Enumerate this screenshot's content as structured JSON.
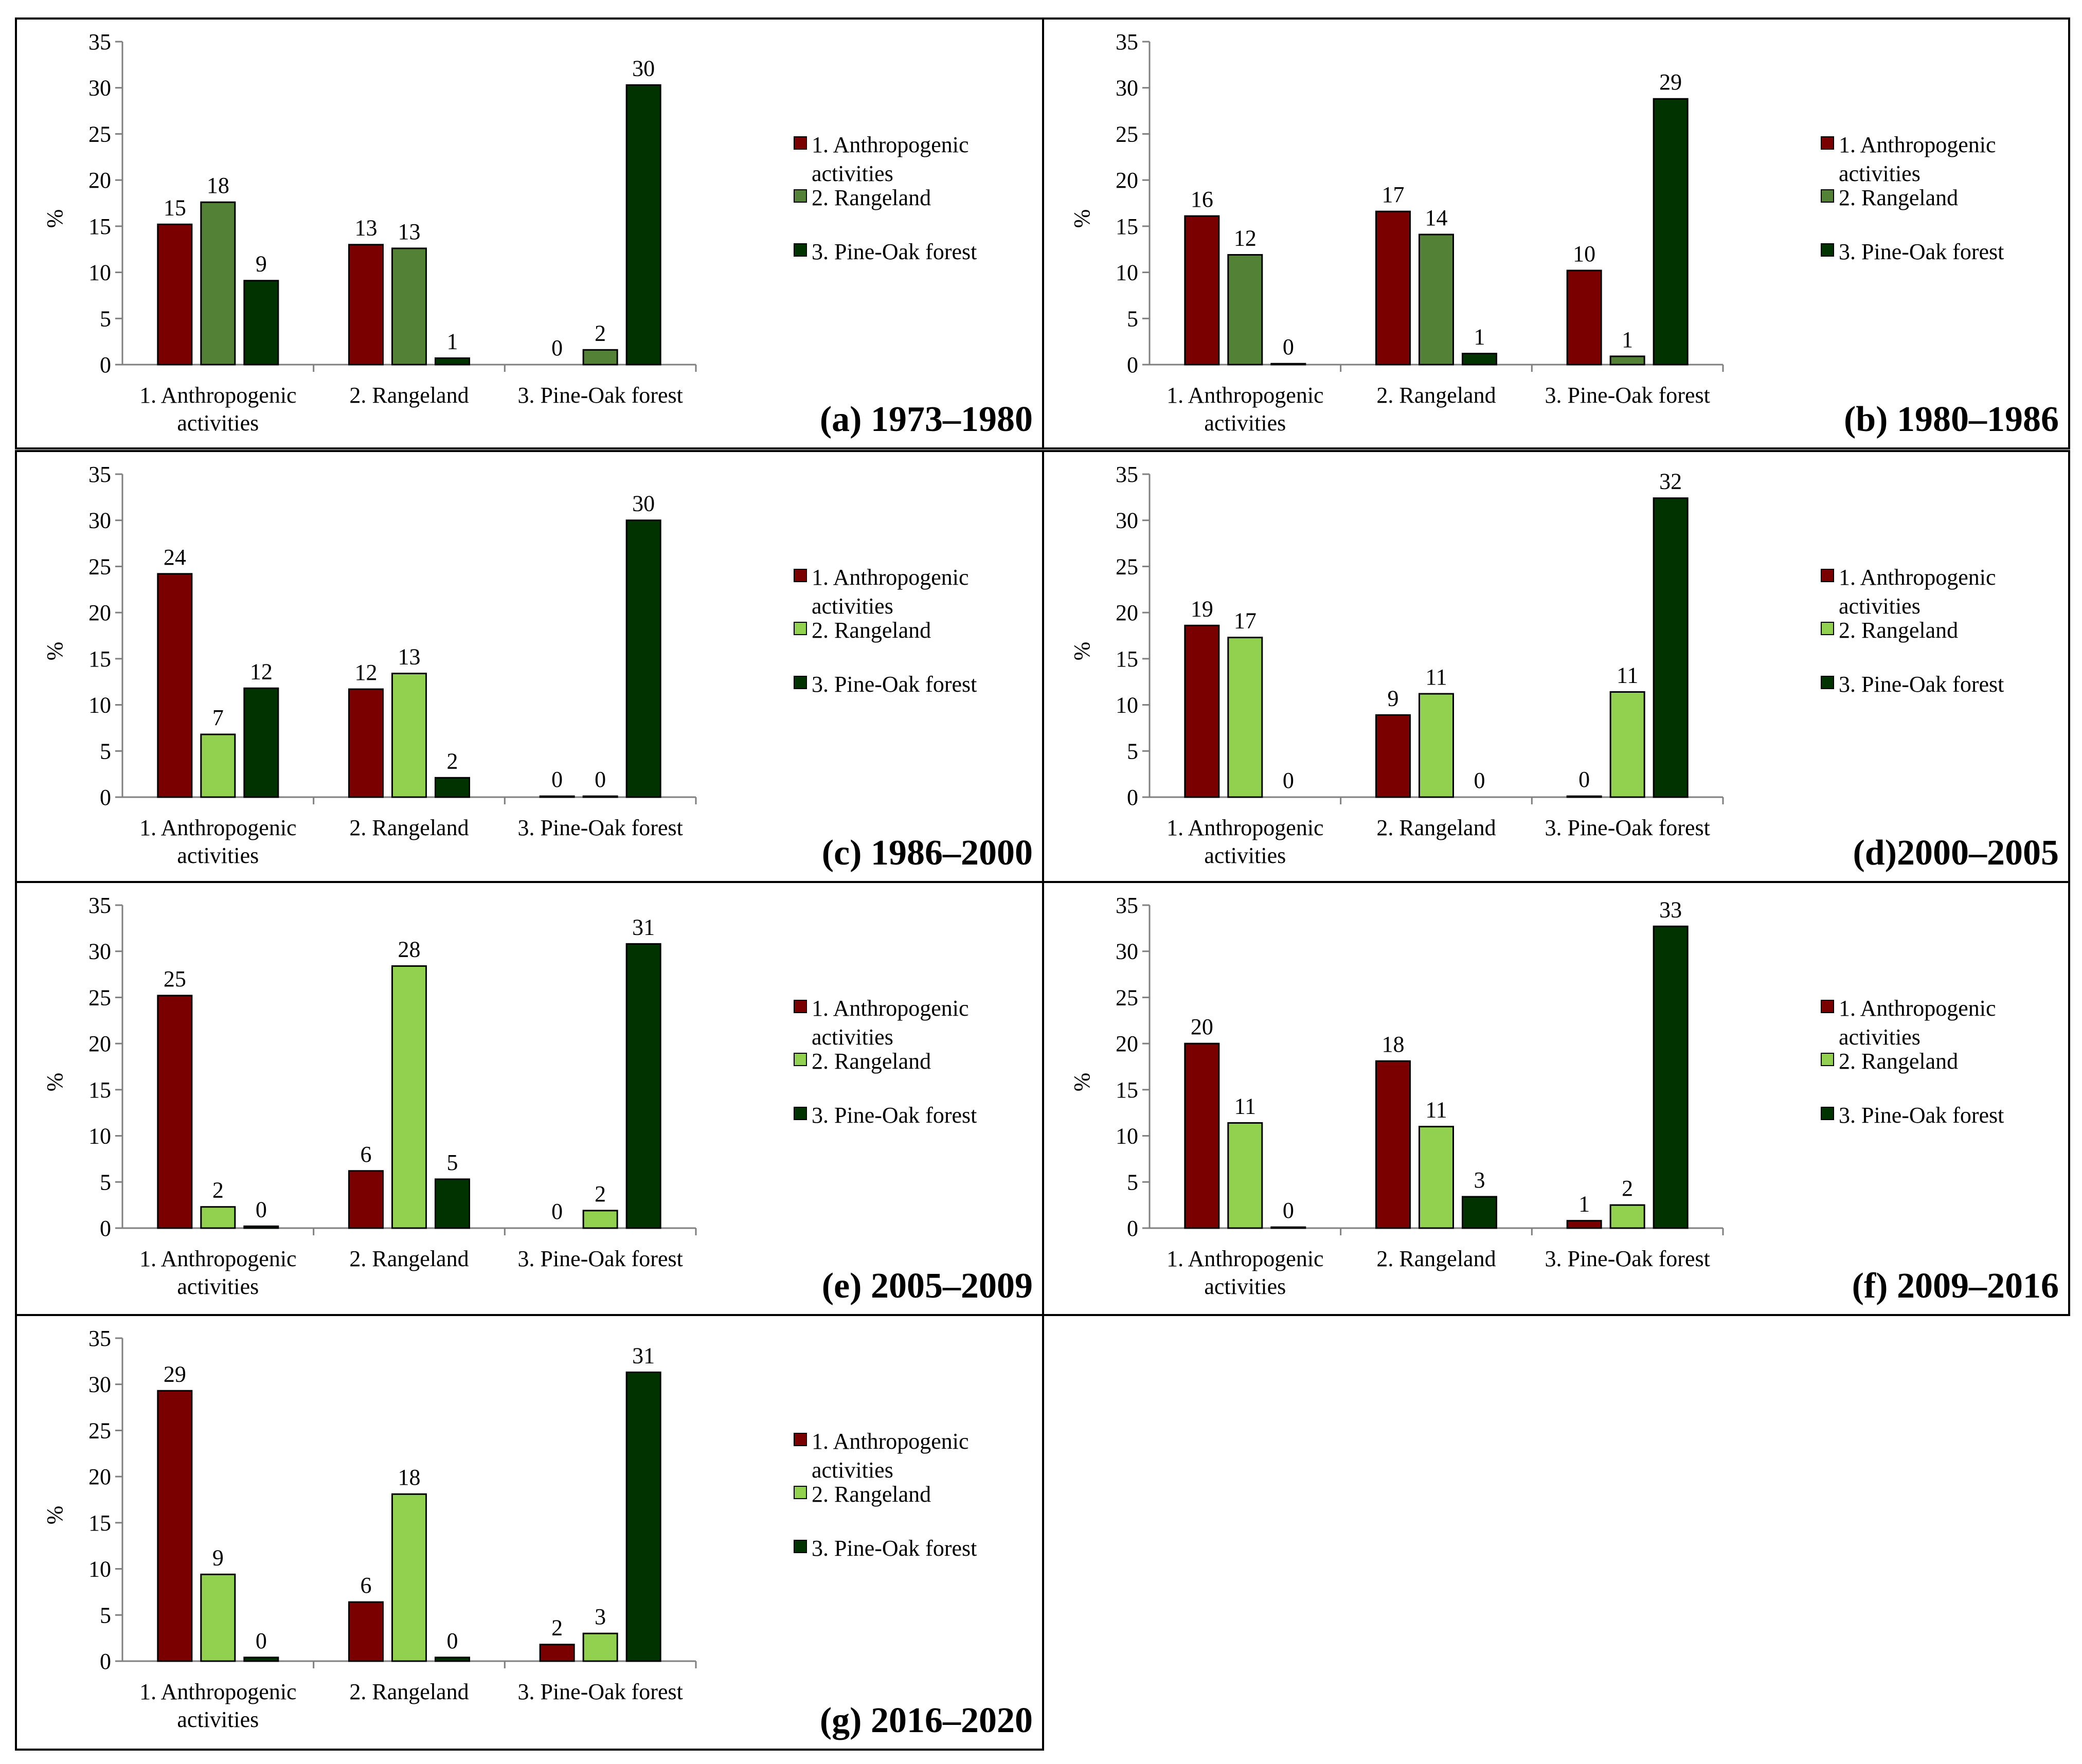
{
  "colors": {
    "s1": "#7a0000",
    "s2_dark": "#538135",
    "s2_light": "#92d050",
    "s3": "#003300"
  },
  "chart_data": [
    {
      "type": "bar",
      "title": "(a) 1973–1980",
      "categories": [
        "1. Anthropogenic activities",
        "2. Rangeland",
        "3. Pine-Oak forest"
      ],
      "series": [
        {
          "name": "1. Anthropogenic activities",
          "values": [
            15.2,
            13.0,
            0.0
          ],
          "labels": [
            "15",
            "13",
            "0"
          ],
          "color": "s1"
        },
        {
          "name": "2. Rangeland",
          "values": [
            17.6,
            12.6,
            1.6
          ],
          "labels": [
            "18",
            "13",
            "2"
          ],
          "color": "s2_dark"
        },
        {
          "name": "3. Pine-Oak forest",
          "values": [
            9.1,
            0.7,
            30.3
          ],
          "labels": [
            "9",
            "1",
            "30"
          ],
          "color": "s3"
        }
      ],
      "ylabel": "%",
      "ylim": [
        0,
        35
      ],
      "yticks": [
        0,
        5,
        10,
        15,
        20,
        25,
        30,
        35
      ],
      "legend": "right"
    },
    {
      "type": "bar",
      "title": "(b) 1980–1986",
      "categories": [
        "1. Anthropogenic activities",
        "2. Rangeland",
        "3. Pine-Oak forest"
      ],
      "series": [
        {
          "name": "1. Anthropogenic activities",
          "values": [
            16.1,
            16.6,
            10.2
          ],
          "labels": [
            "16",
            "17",
            "10"
          ],
          "color": "s1"
        },
        {
          "name": "2. Rangeland",
          "values": [
            11.9,
            14.1,
            0.9
          ],
          "labels": [
            "12",
            "14",
            "1"
          ],
          "color": "s2_dark"
        },
        {
          "name": "3. Pine-Oak forest",
          "values": [
            0.1,
            1.2,
            28.8
          ],
          "labels": [
            "0",
            "1",
            "29"
          ],
          "color": "s3"
        }
      ],
      "ylabel": "%",
      "ylim": [
        0,
        35
      ],
      "yticks": [
        0,
        5,
        10,
        15,
        20,
        25,
        30,
        35
      ],
      "legend": "right"
    },
    {
      "type": "bar",
      "title": "(c) 1986–2000",
      "categories": [
        "1. Anthropogenic activities",
        "2. Rangeland",
        "3. Pine-Oak forest"
      ],
      "series": [
        {
          "name": "1. Anthropogenic activities",
          "values": [
            24.2,
            11.7,
            0.1
          ],
          "labels": [
            "24",
            "12",
            "0"
          ],
          "color": "s1"
        },
        {
          "name": "2. Rangeland",
          "values": [
            6.8,
            13.4,
            0.1
          ],
          "labels": [
            "7",
            "13",
            "0"
          ],
          "color": "s2_light"
        },
        {
          "name": "3. Pine-Oak forest",
          "values": [
            11.8,
            2.1,
            30.0
          ],
          "labels": [
            "12",
            "2",
            "30"
          ],
          "color": "s3"
        }
      ],
      "ylabel": "%",
      "ylim": [
        0,
        35
      ],
      "yticks": [
        0,
        5,
        10,
        15,
        20,
        25,
        30,
        35
      ],
      "legend": "right"
    },
    {
      "type": "bar",
      "title": "(d)2000–2005",
      "categories": [
        "1. Anthropogenic activities",
        "2. Rangeland",
        "3. Pine-Oak forest"
      ],
      "series": [
        {
          "name": "1. Anthropogenic activities",
          "values": [
            18.6,
            8.9,
            0.1
          ],
          "labels": [
            "19",
            "9",
            "0"
          ],
          "color": "s1"
        },
        {
          "name": "2. Rangeland",
          "values": [
            17.3,
            11.2,
            11.4
          ],
          "labels": [
            "17",
            "11",
            "11"
          ],
          "color": "s2_light"
        },
        {
          "name": "3. Pine-Oak forest",
          "values": [
            0.0,
            0.0,
            32.4
          ],
          "labels": [
            "0",
            "0",
            "32"
          ],
          "color": "s3"
        }
      ],
      "ylabel": "%",
      "ylim": [
        0,
        35
      ],
      "yticks": [
        0,
        5,
        10,
        15,
        20,
        25,
        30,
        35
      ],
      "legend": "right"
    },
    {
      "type": "bar",
      "title": "(e) 2005–2009",
      "categories": [
        "1. Anthropogenic activities",
        "2. Rangeland",
        "3. Pine-Oak forest"
      ],
      "series": [
        {
          "name": "1. Anthropogenic activities",
          "values": [
            25.2,
            6.2,
            0.0
          ],
          "labels": [
            "25",
            "6",
            "0"
          ],
          "color": "s1"
        },
        {
          "name": "2. Rangeland",
          "values": [
            2.3,
            28.4,
            1.9
          ],
          "labels": [
            "2",
            "28",
            "2"
          ],
          "color": "s2_light"
        },
        {
          "name": "3. Pine-Oak forest",
          "values": [
            0.2,
            5.3,
            30.8
          ],
          "labels": [
            "0",
            "5",
            "31"
          ],
          "color": "s3"
        }
      ],
      "ylabel": "%",
      "ylim": [
        0,
        35
      ],
      "yticks": [
        0,
        5,
        10,
        15,
        20,
        25,
        30,
        35
      ],
      "legend": "right"
    },
    {
      "type": "bar",
      "title": "(f) 2009–2016",
      "categories": [
        "1. Anthropogenic activities",
        "2. Rangeland",
        "3. Pine-Oak forest"
      ],
      "series": [
        {
          "name": "1. Anthropogenic activities",
          "values": [
            20.0,
            18.1,
            0.8
          ],
          "labels": [
            "20",
            "18",
            "1"
          ],
          "color": "s1"
        },
        {
          "name": "2. Rangeland",
          "values": [
            11.4,
            11.0,
            2.5
          ],
          "labels": [
            "11",
            "11",
            "2"
          ],
          "color": "s2_light"
        },
        {
          "name": "3. Pine-Oak forest",
          "values": [
            0.1,
            3.4,
            32.7
          ],
          "labels": [
            "0",
            "3",
            "33"
          ],
          "color": "s3"
        }
      ],
      "ylabel": "%",
      "ylim": [
        0,
        35
      ],
      "yticks": [
        0,
        5,
        10,
        15,
        20,
        25,
        30,
        35
      ],
      "legend": "right"
    },
    {
      "type": "bar",
      "title": "(g) 2016–2020",
      "categories": [
        "1. Anthropogenic activities",
        "2. Rangeland",
        "3. Pine-Oak forest"
      ],
      "series": [
        {
          "name": "1. Anthropogenic activities",
          "values": [
            29.3,
            6.4,
            1.8
          ],
          "labels": [
            "29",
            "6",
            "2"
          ],
          "color": "s1"
        },
        {
          "name": "2. Rangeland",
          "values": [
            9.4,
            18.1,
            3.0
          ],
          "labels": [
            "9",
            "18",
            "3"
          ],
          "color": "s2_light"
        },
        {
          "name": "3. Pine-Oak forest",
          "values": [
            0.4,
            0.4,
            31.3
          ],
          "labels": [
            "0",
            "0",
            "31"
          ],
          "color": "s3"
        }
      ],
      "ylabel": "%",
      "ylim": [
        0,
        35
      ],
      "yticks": [
        0,
        5,
        10,
        15,
        20,
        25,
        30,
        35
      ],
      "legend": "right"
    }
  ]
}
